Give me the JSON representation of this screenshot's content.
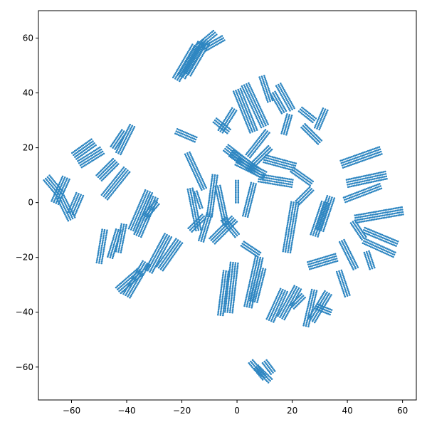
{
  "chart_data": {
    "type": "scatter",
    "title": "",
    "xlabel": "",
    "ylabel": "",
    "xlim": [
      -72,
      65
    ],
    "ylim": [
      -72,
      70
    ],
    "xticks": [
      -60,
      -40,
      -20,
      0,
      20,
      40,
      60
    ],
    "yticks": [
      -60,
      -40,
      -20,
      0,
      20,
      40,
      60
    ],
    "grid": false,
    "legend": "none",
    "point_color": "#2e86c1",
    "series": [
      {
        "segments": [
          [
            -22,
            45,
            -15,
            57,
            4
          ],
          [
            -20,
            46,
            -13,
            58,
            4
          ],
          [
            -18,
            47,
            -11,
            59,
            4
          ],
          [
            -14,
            57,
            -8,
            62,
            3
          ],
          [
            -12,
            56,
            -5,
            60,
            3
          ],
          [
            -69,
            9,
            -64,
            3,
            4
          ],
          [
            -66,
            0,
            -62,
            9,
            4
          ],
          [
            -64,
            2,
            -60,
            -6,
            4
          ],
          [
            -60,
            -4,
            -57,
            3,
            4
          ],
          [
            -59,
            17,
            -52,
            22,
            4
          ],
          [
            -57,
            14,
            -49,
            19,
            4
          ],
          [
            -50,
            9,
            -44,
            15,
            4
          ],
          [
            -48,
            2,
            -40,
            12,
            4
          ],
          [
            -45,
            20,
            -41,
            26,
            3
          ],
          [
            -43,
            18,
            -38,
            28,
            3
          ],
          [
            -38,
            -10,
            -32,
            4,
            4
          ],
          [
            -36,
            -12,
            -30,
            2,
            4
          ],
          [
            -34,
            -6,
            -29,
            0,
            3
          ],
          [
            -50,
            -22,
            -48,
            -10,
            3
          ],
          [
            -46,
            -20,
            -43,
            -10,
            3
          ],
          [
            -43,
            -18,
            -41,
            -8,
            3
          ],
          [
            -43,
            -32,
            -35,
            -25,
            4
          ],
          [
            -40,
            -34,
            -33,
            -22,
            4
          ],
          [
            -32,
            -25,
            -25,
            -12,
            4
          ],
          [
            -28,
            -24,
            -21,
            -14,
            4
          ],
          [
            -22,
            26,
            -15,
            23,
            3
          ],
          [
            -18,
            18,
            -12,
            5,
            3
          ],
          [
            -15,
            4,
            -13,
            -2,
            2
          ],
          [
            -17,
            -10,
            -12,
            -5,
            3
          ],
          [
            -17,
            5,
            -14,
            -10,
            3
          ],
          [
            -13,
            -14,
            -10,
            -4,
            3
          ],
          [
            -9,
            -14,
            -1,
            -6,
            4
          ],
          [
            -10,
            -5,
            -8,
            10,
            3
          ],
          [
            -7,
            6,
            -4,
            -8,
            3
          ],
          [
            -5,
            -6,
            0,
            -12,
            3
          ],
          [
            -8,
            30,
            -3,
            26,
            3
          ],
          [
            -6,
            26,
            -1,
            34,
            3
          ],
          [
            -3,
            -40,
            -1,
            -22,
            4
          ],
          [
            -6,
            -41,
            -4,
            -25,
            3
          ],
          [
            -4,
            20,
            5,
            13,
            4
          ],
          [
            -2,
            18,
            8,
            11,
            4
          ],
          [
            0,
            15,
            10,
            10,
            4
          ],
          [
            0,
            0,
            0,
            8,
            2
          ],
          [
            3,
            -5,
            6,
            7,
            3
          ],
          [
            2,
            -15,
            8,
            -19,
            3
          ],
          [
            0,
            41,
            6,
            26,
            4
          ],
          [
            3,
            43,
            10,
            28,
            4
          ],
          [
            4,
            17,
            11,
            26,
            3
          ],
          [
            6,
            14,
            12,
            20,
            3
          ],
          [
            4,
            -38,
            8,
            -20,
            4
          ],
          [
            6,
            -36,
            9,
            -24,
            4
          ],
          [
            5,
            -58,
            10,
            -64,
            3
          ],
          [
            7,
            -60,
            12,
            -65,
            3
          ],
          [
            10,
            -58,
            13,
            -62,
            3
          ],
          [
            9,
            46,
            12,
            37,
            3
          ],
          [
            13,
            40,
            17,
            33,
            3
          ],
          [
            15,
            43,
            20,
            34,
            3
          ],
          [
            8,
            9,
            20,
            7,
            4
          ],
          [
            10,
            16,
            21,
            13,
            4
          ],
          [
            20,
            12,
            27,
            7,
            3
          ],
          [
            12,
            -43,
            17,
            -32,
            4
          ],
          [
            16,
            -42,
            22,
            -31,
            4
          ],
          [
            20,
            -38,
            24,
            -34,
            3
          ],
          [
            17,
            25,
            19,
            32,
            3
          ],
          [
            23,
            34,
            28,
            30,
            3
          ],
          [
            24,
            28,
            30,
            22,
            3
          ],
          [
            29,
            27,
            32,
            34,
            3
          ],
          [
            25,
            -45,
            28,
            -32,
            3
          ],
          [
            27,
            -43,
            33,
            -33,
            4
          ],
          [
            29,
            -38,
            34,
            -40,
            3
          ],
          [
            18,
            -18,
            21,
            0,
            4
          ],
          [
            22,
            0,
            27,
            5,
            3
          ],
          [
            28,
            -12,
            32,
            0,
            4
          ],
          [
            30,
            -10,
            34,
            2,
            4
          ],
          [
            26,
            -23,
            36,
            -20,
            4
          ],
          [
            37,
            -25,
            40,
            -34,
            3
          ],
          [
            38,
            14,
            52,
            19,
            4
          ],
          [
            40,
            7,
            54,
            10,
            4
          ],
          [
            39,
            1,
            52,
            6,
            3
          ],
          [
            38,
            -14,
            43,
            -24,
            3
          ],
          [
            42,
            -7,
            46,
            -13,
            3
          ],
          [
            47,
            -18,
            49,
            -24,
            3
          ],
          [
            43,
            -6,
            60,
            -3,
            4
          ],
          [
            46,
            -10,
            58,
            -15,
            3
          ],
          [
            46,
            -14,
            57,
            -19,
            3
          ]
        ]
      }
    ]
  }
}
